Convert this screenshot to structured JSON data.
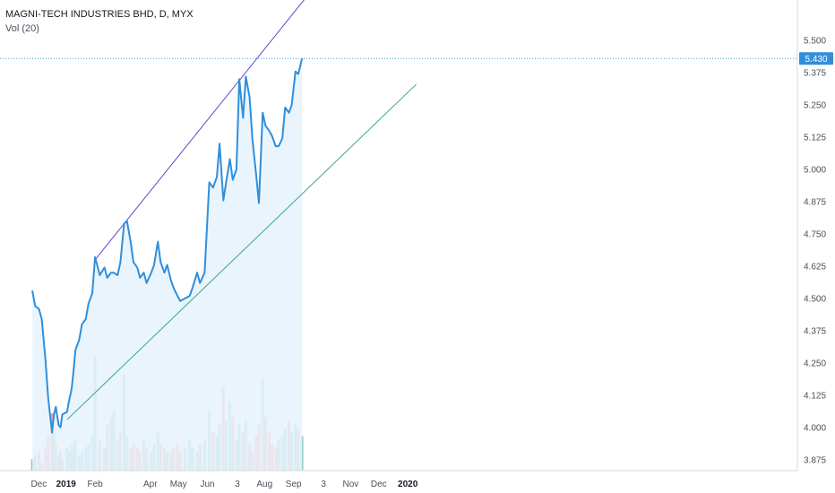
{
  "header": {
    "title": "MAGNI-TECH INDUSTRIES BHD, D, MYX",
    "indicator": "Vol (20)"
  },
  "colors": {
    "price_line": "#2f8fdc",
    "area_fill": "#e6f2fc",
    "upper_trendline": "#5b48c9",
    "lower_trendline": "#3aa68b",
    "volume_up": "#7fcfc0",
    "volume_down": "#f29a9a",
    "last_price_line": "#3aa0d8",
    "last_price_badge": "#2f8fdc"
  },
  "chart_data": {
    "type": "line",
    "title": "MAGNI-TECH INDUSTRIES BHD, D, MYX",
    "ylim": [
      3.85,
      5.57
    ],
    "y_ticks": [
      "5.500",
      "5.375",
      "5.250",
      "5.125",
      "5.000",
      "4.875",
      "4.750",
      "4.625",
      "4.500",
      "4.375",
      "4.250",
      "4.125",
      "4.000",
      "3.875"
    ],
    "x_ticks": [
      "Dec",
      "2019",
      "Feb",
      "Apr",
      "May",
      "Jun",
      "3",
      "Aug",
      "Sep",
      "3",
      "Nov",
      "Dec",
      "2020"
    ],
    "last_price": "5.430",
    "grid": false,
    "series": [
      {
        "x": [
          "2018-11-26",
          "2018-11-29",
          "2018-12-03",
          "2018-12-06",
          "2018-12-10",
          "2018-12-13",
          "2018-12-17",
          "2018-12-19",
          "2018-12-21",
          "2018-12-24",
          "2018-12-26",
          "2018-12-28",
          "2019-01-02",
          "2019-01-04",
          "2019-01-07",
          "2019-01-09",
          "2019-01-11",
          "2019-01-15",
          "2019-01-18",
          "2019-01-22",
          "2019-01-25",
          "2019-01-29",
          "2019-02-01",
          "2019-02-06",
          "2019-02-11",
          "2019-02-14",
          "2019-02-18",
          "2019-02-21",
          "2019-02-25",
          "2019-02-28",
          "2019-03-04",
          "2019-03-07",
          "2019-03-11",
          "2019-03-14",
          "2019-03-18",
          "2019-03-21",
          "2019-03-25",
          "2019-03-28",
          "2019-04-02",
          "2019-04-05",
          "2019-04-09",
          "2019-04-12",
          "2019-04-16",
          "2019-04-19",
          "2019-04-23",
          "2019-04-26",
          "2019-04-30",
          "2019-05-03",
          "2019-05-08",
          "2019-05-13",
          "2019-05-16",
          "2019-05-21",
          "2019-05-24",
          "2019-05-29",
          "2019-06-03",
          "2019-06-07",
          "2019-06-11",
          "2019-06-14",
          "2019-06-18",
          "2019-06-21",
          "2019-06-25",
          "2019-06-28",
          "2019-07-02",
          "2019-07-05",
          "2019-07-09",
          "2019-07-12",
          "2019-07-16",
          "2019-07-19",
          "2019-07-23",
          "2019-07-26",
          "2019-07-30",
          "2019-08-02",
          "2019-08-06",
          "2019-08-09",
          "2019-08-13",
          "2019-08-16",
          "2019-08-20",
          "2019-08-23",
          "2019-08-27",
          "2019-08-30",
          "2019-09-03",
          "2019-09-06",
          "2019-09-10"
        ],
        "values": [
          4.53,
          4.47,
          4.46,
          4.42,
          4.26,
          4.11,
          3.98,
          4.05,
          4.08,
          4.01,
          4.0,
          4.05,
          4.06,
          4.1,
          4.15,
          4.22,
          4.3,
          4.34,
          4.4,
          4.42,
          4.48,
          4.52,
          4.66,
          4.59,
          4.62,
          4.58,
          4.6,
          4.6,
          4.59,
          4.64,
          4.79,
          4.8,
          4.72,
          4.64,
          4.62,
          4.58,
          4.6,
          4.56,
          4.6,
          4.63,
          4.72,
          4.64,
          4.6,
          4.63,
          4.57,
          4.54,
          4.51,
          4.49,
          4.5,
          4.51,
          4.54,
          4.6,
          4.56,
          4.6,
          4.95,
          4.93,
          4.97,
          5.1,
          4.88,
          4.95,
          5.04,
          4.96,
          5.0,
          5.35,
          5.2,
          5.36,
          5.28,
          5.12,
          4.98,
          4.87,
          5.22,
          5.17,
          5.15,
          5.13,
          5.09,
          5.09,
          5.12,
          5.24,
          5.22,
          5.25,
          5.38,
          5.37,
          5.43
        ]
      }
    ],
    "trendlines": [
      {
        "name": "upper",
        "x": [
          "2019-02-01",
          "2019-09-15"
        ],
        "y": [
          4.65,
          5.67
        ]
      },
      {
        "name": "lower",
        "x": [
          "2019-01-02",
          "2020-01-10"
        ],
        "y": [
          4.03,
          5.33
        ]
      }
    ],
    "volume": [
      3,
      4,
      5,
      2,
      6,
      9,
      15,
      10,
      7,
      4,
      5,
      3,
      6,
      5,
      7,
      6,
      8,
      4,
      5,
      6,
      7,
      9,
      30,
      8,
      6,
      12,
      14,
      16,
      8,
      10,
      25,
      9,
      6,
      7,
      6,
      5,
      8,
      6,
      5,
      7,
      10,
      7,
      6,
      5,
      5,
      6,
      7,
      5,
      6,
      8,
      6,
      5,
      7,
      8,
      16,
      10,
      9,
      12,
      22,
      13,
      18,
      14,
      8,
      12,
      10,
      13,
      7,
      5,
      9,
      12,
      24,
      14,
      10,
      7,
      6,
      8,
      9,
      11,
      13,
      10,
      12,
      11,
      9
    ]
  }
}
